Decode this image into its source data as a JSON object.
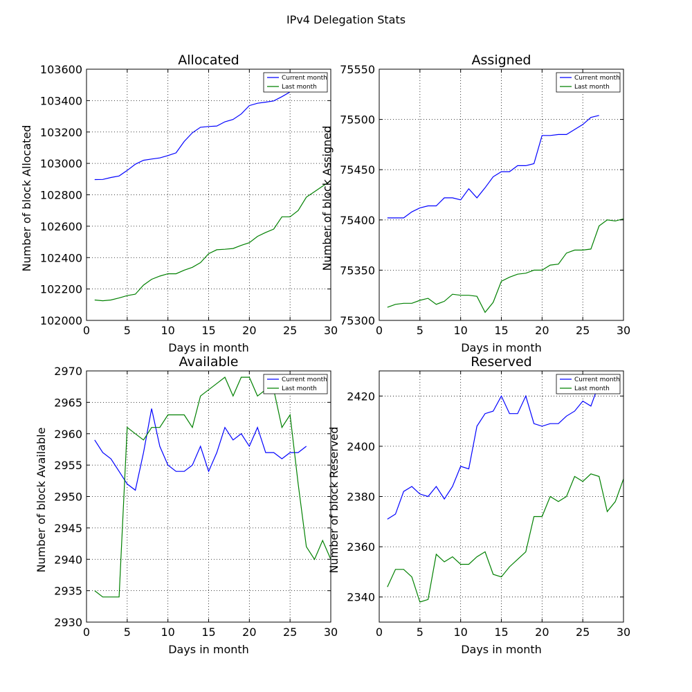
{
  "figure": {
    "suptitle": "IPv4 Delegation Stats"
  },
  "colors": {
    "current": "#0000ff",
    "last": "#008000",
    "frame": "#000000",
    "grid": "#000000"
  },
  "legend": {
    "placement": "upper-right",
    "entries": [
      "Current month",
      "Last month"
    ]
  },
  "chart_data": [
    {
      "type": "line",
      "title": "Allocated",
      "xlabel": "Days in month",
      "ylabel": "Number of block Allocated",
      "xlim": [
        0,
        30
      ],
      "ylim": [
        102000,
        103600
      ],
      "xticks": [
        0,
        5,
        10,
        15,
        20,
        25,
        30
      ],
      "yticks": [
        102000,
        102200,
        102400,
        102600,
        102800,
        103000,
        103200,
        103400,
        103600
      ],
      "grid": true,
      "series": [
        {
          "name": "Current month",
          "color": "#0000ff",
          "x": [
            1,
            2,
            3,
            4,
            5,
            6,
            7,
            8,
            9,
            10,
            11,
            12,
            13,
            14,
            15,
            16,
            17,
            18,
            19,
            20,
            21,
            22,
            23,
            24,
            25
          ],
          "y": [
            102897,
            102898,
            102910,
            102920,
            102955,
            102995,
            103020,
            103028,
            103035,
            103050,
            103067,
            103140,
            103195,
            103230,
            103235,
            103238,
            103265,
            103280,
            103315,
            103368,
            103383,
            103390,
            103398,
            103425,
            103455
          ]
        },
        {
          "name": "Last month",
          "color": "#008000",
          "x": [
            1,
            2,
            3,
            4,
            5,
            6,
            7,
            8,
            9,
            10,
            11,
            12,
            13,
            14,
            15,
            16,
            17,
            18,
            19,
            20,
            21,
            22,
            23,
            24,
            25,
            26,
            27,
            28,
            29,
            30
          ],
          "y": [
            102130,
            102125,
            102130,
            102143,
            102158,
            102167,
            102225,
            102262,
            102282,
            102297,
            102297,
            102320,
            102338,
            102368,
            102425,
            102450,
            102453,
            102458,
            102478,
            102495,
            102535,
            102560,
            102582,
            102660,
            102660,
            102700,
            102785,
            102820,
            102855,
            102890
          ]
        }
      ]
    },
    {
      "type": "line",
      "title": "Assigned",
      "xlabel": "Days in month",
      "ylabel": "Number of block Assigned",
      "xlim": [
        0,
        30
      ],
      "ylim": [
        75300,
        75550
      ],
      "xticks": [
        0,
        5,
        10,
        15,
        20,
        25,
        30
      ],
      "yticks": [
        75300,
        75350,
        75400,
        75450,
        75500,
        75550
      ],
      "grid": true,
      "series": [
        {
          "name": "Current month",
          "color": "#0000ff",
          "x": [
            1,
            2,
            3,
            4,
            5,
            6,
            7,
            8,
            9,
            10,
            11,
            12,
            13,
            14,
            15,
            16,
            17,
            18,
            19,
            20,
            21,
            22,
            23,
            24,
            25,
            26,
            27
          ],
          "y": [
            75402,
            75402,
            75402,
            75408,
            75412,
            75414,
            75414,
            75422,
            75422,
            75420,
            75431,
            75422,
            75432,
            75443,
            75448,
            75448,
            75454,
            75454,
            75456,
            75484,
            75484,
            75485,
            75485,
            75490,
            75495,
            75502,
            75504
          ]
        },
        {
          "name": "Last month",
          "color": "#008000",
          "x": [
            1,
            2,
            3,
            4,
            5,
            6,
            7,
            8,
            9,
            10,
            11,
            12,
            13,
            14,
            15,
            16,
            17,
            18,
            19,
            20,
            21,
            22,
            23,
            24,
            25,
            26,
            27,
            28,
            29,
            30
          ],
          "y": [
            75313,
            75316,
            75317,
            75317,
            75320,
            75322,
            75316,
            75319,
            75326,
            75325,
            75325,
            75324,
            75308,
            75318,
            75339,
            75343,
            75346,
            75347,
            75350,
            75350,
            75355,
            75356,
            75367,
            75370,
            75370,
            75371,
            75394,
            75400,
            75399,
            75401
          ]
        }
      ]
    },
    {
      "type": "line",
      "title": "Available",
      "xlabel": "Days in month",
      "ylabel": "Number of block Available",
      "xlim": [
        0,
        30
      ],
      "ylim": [
        2930,
        2970
      ],
      "xticks": [
        0,
        5,
        10,
        15,
        20,
        25,
        30
      ],
      "yticks": [
        2930,
        2935,
        2940,
        2945,
        2950,
        2955,
        2960,
        2965,
        2970
      ],
      "grid": true,
      "series": [
        {
          "name": "Current month",
          "color": "#0000ff",
          "x": [
            1,
            2,
            3,
            4,
            5,
            6,
            7,
            8,
            9,
            10,
            11,
            12,
            13,
            14,
            15,
            16,
            17,
            18,
            19,
            20,
            21,
            22,
            23,
            24,
            25,
            26,
            27
          ],
          "y": [
            2959,
            2957,
            2956,
            2954,
            2952,
            2951,
            2957,
            2964,
            2958,
            2955,
            2954,
            2954,
            2955,
            2958,
            2954,
            2957,
            2961,
            2959,
            2960,
            2958,
            2961,
            2957,
            2957,
            2956,
            2957,
            2957,
            2958
          ]
        },
        {
          "name": "Last month",
          "color": "#008000",
          "x": [
            1,
            2,
            3,
            4,
            5,
            6,
            7,
            8,
            9,
            10,
            11,
            12,
            13,
            14,
            15,
            16,
            17,
            18,
            19,
            20,
            21,
            22,
            23,
            24,
            25,
            26,
            27,
            28,
            29,
            30
          ],
          "y": [
            2935,
            2934,
            2934,
            2934,
            2961,
            2960,
            2959,
            2961,
            2961,
            2963,
            2963,
            2963,
            2961,
            2966,
            2967,
            2968,
            2969,
            2966,
            2969,
            2969,
            2966,
            2967,
            2967,
            2961,
            2963,
            2952,
            2942,
            2940,
            2943,
            2940
          ]
        }
      ]
    },
    {
      "type": "line",
      "title": "Reserved",
      "xlabel": "Days in month",
      "ylabel": "Number of block Reserved",
      "xlim": [
        0,
        30
      ],
      "ylim": [
        2330,
        2430
      ],
      "xticks": [
        0,
        5,
        10,
        15,
        20,
        25,
        30
      ],
      "yticks": [
        2340,
        2360,
        2380,
        2400,
        2420
      ],
      "grid": true,
      "series": [
        {
          "name": "Current month",
          "color": "#0000ff",
          "x": [
            1,
            2,
            3,
            4,
            5,
            6,
            7,
            8,
            9,
            10,
            11,
            12,
            13,
            14,
            15,
            16,
            17,
            18,
            19,
            20,
            21,
            22,
            23,
            24,
            25,
            26,
            27
          ],
          "y": [
            2371,
            2373,
            2382,
            2384,
            2381,
            2380,
            2384,
            2379,
            2384,
            2392,
            2391,
            2408,
            2413,
            2414,
            2420,
            2413,
            2413,
            2420,
            2409,
            2408,
            2409,
            2409,
            2412,
            2414,
            2418,
            2416,
            2425
          ]
        },
        {
          "name": "Last month",
          "color": "#008000",
          "x": [
            1,
            2,
            3,
            4,
            5,
            6,
            7,
            8,
            9,
            10,
            11,
            12,
            13,
            14,
            15,
            16,
            17,
            18,
            19,
            20,
            21,
            22,
            23,
            24,
            25,
            26,
            27,
            28,
            29,
            30
          ],
          "y": [
            2344,
            2351,
            2351,
            2348,
            2338,
            2339,
            2357,
            2354,
            2356,
            2353,
            2353,
            2356,
            2358,
            2349,
            2348,
            2352,
            2355,
            2358,
            2372,
            2372,
            2380,
            2378,
            2380,
            2388,
            2386,
            2389,
            2388,
            2374,
            2378,
            2387
          ]
        }
      ]
    }
  ]
}
